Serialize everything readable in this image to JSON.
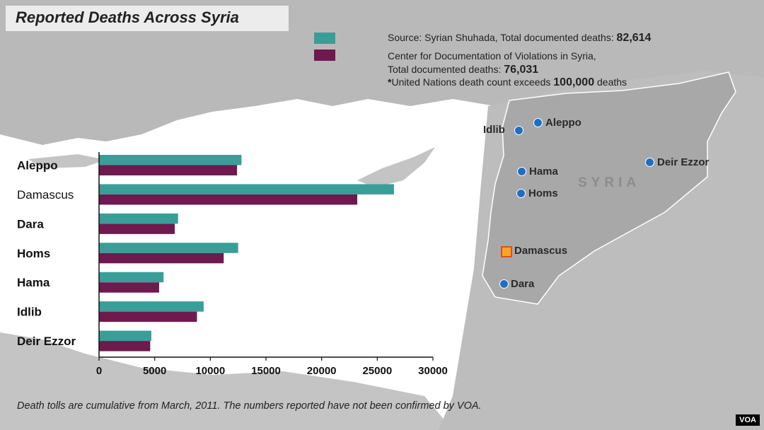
{
  "title": "Reported Deaths Across Syria",
  "legend": [
    {
      "color": "#3a9e98",
      "text_parts": [
        "Source: Syrian Shuhada, Total documented deaths: ",
        "82,614"
      ]
    },
    {
      "color": "#6e1a4e",
      "lines": [
        "Center for Documentation of Violations in Syria,",
        "Total documented deaths: 76,031"
      ]
    }
  ],
  "un_note": {
    "prefix": "*",
    "text": "United Nations death count exceeds ",
    "value": "100,000",
    "suffix": " deaths"
  },
  "map": {
    "country_label": "SYRIA",
    "cities": [
      "Aleppo",
      "Idlib",
      "Hama",
      "Homs",
      "Deir Ezzor",
      "Damascus",
      "Dara"
    ]
  },
  "chart_data": {
    "type": "bar",
    "orientation": "horizontal",
    "categories": [
      "Aleppo",
      "Damascus",
      "Dara",
      "Homs",
      "Hama",
      "Idlib",
      "Deir Ezzor"
    ],
    "series": [
      {
        "name": "Syrian Shuhada",
        "color": "#3a9e98",
        "values": [
          12800,
          26500,
          7100,
          12500,
          5800,
          9400,
          4700
        ]
      },
      {
        "name": "Center for Documentation of Violations in Syria",
        "color": "#6e1a4e",
        "values": [
          12400,
          23200,
          6800,
          11200,
          5400,
          8800,
          4600
        ]
      }
    ],
    "xticks": [
      "0",
      "5000",
      "10000",
      "15000",
      "20000",
      "25000",
      "30000"
    ],
    "xlim": [
      0,
      30000
    ]
  },
  "footnote": "Death tolls are cumulative from March, 2011.  The numbers reported have not been confirmed by VOA.",
  "watermark": "VOA"
}
